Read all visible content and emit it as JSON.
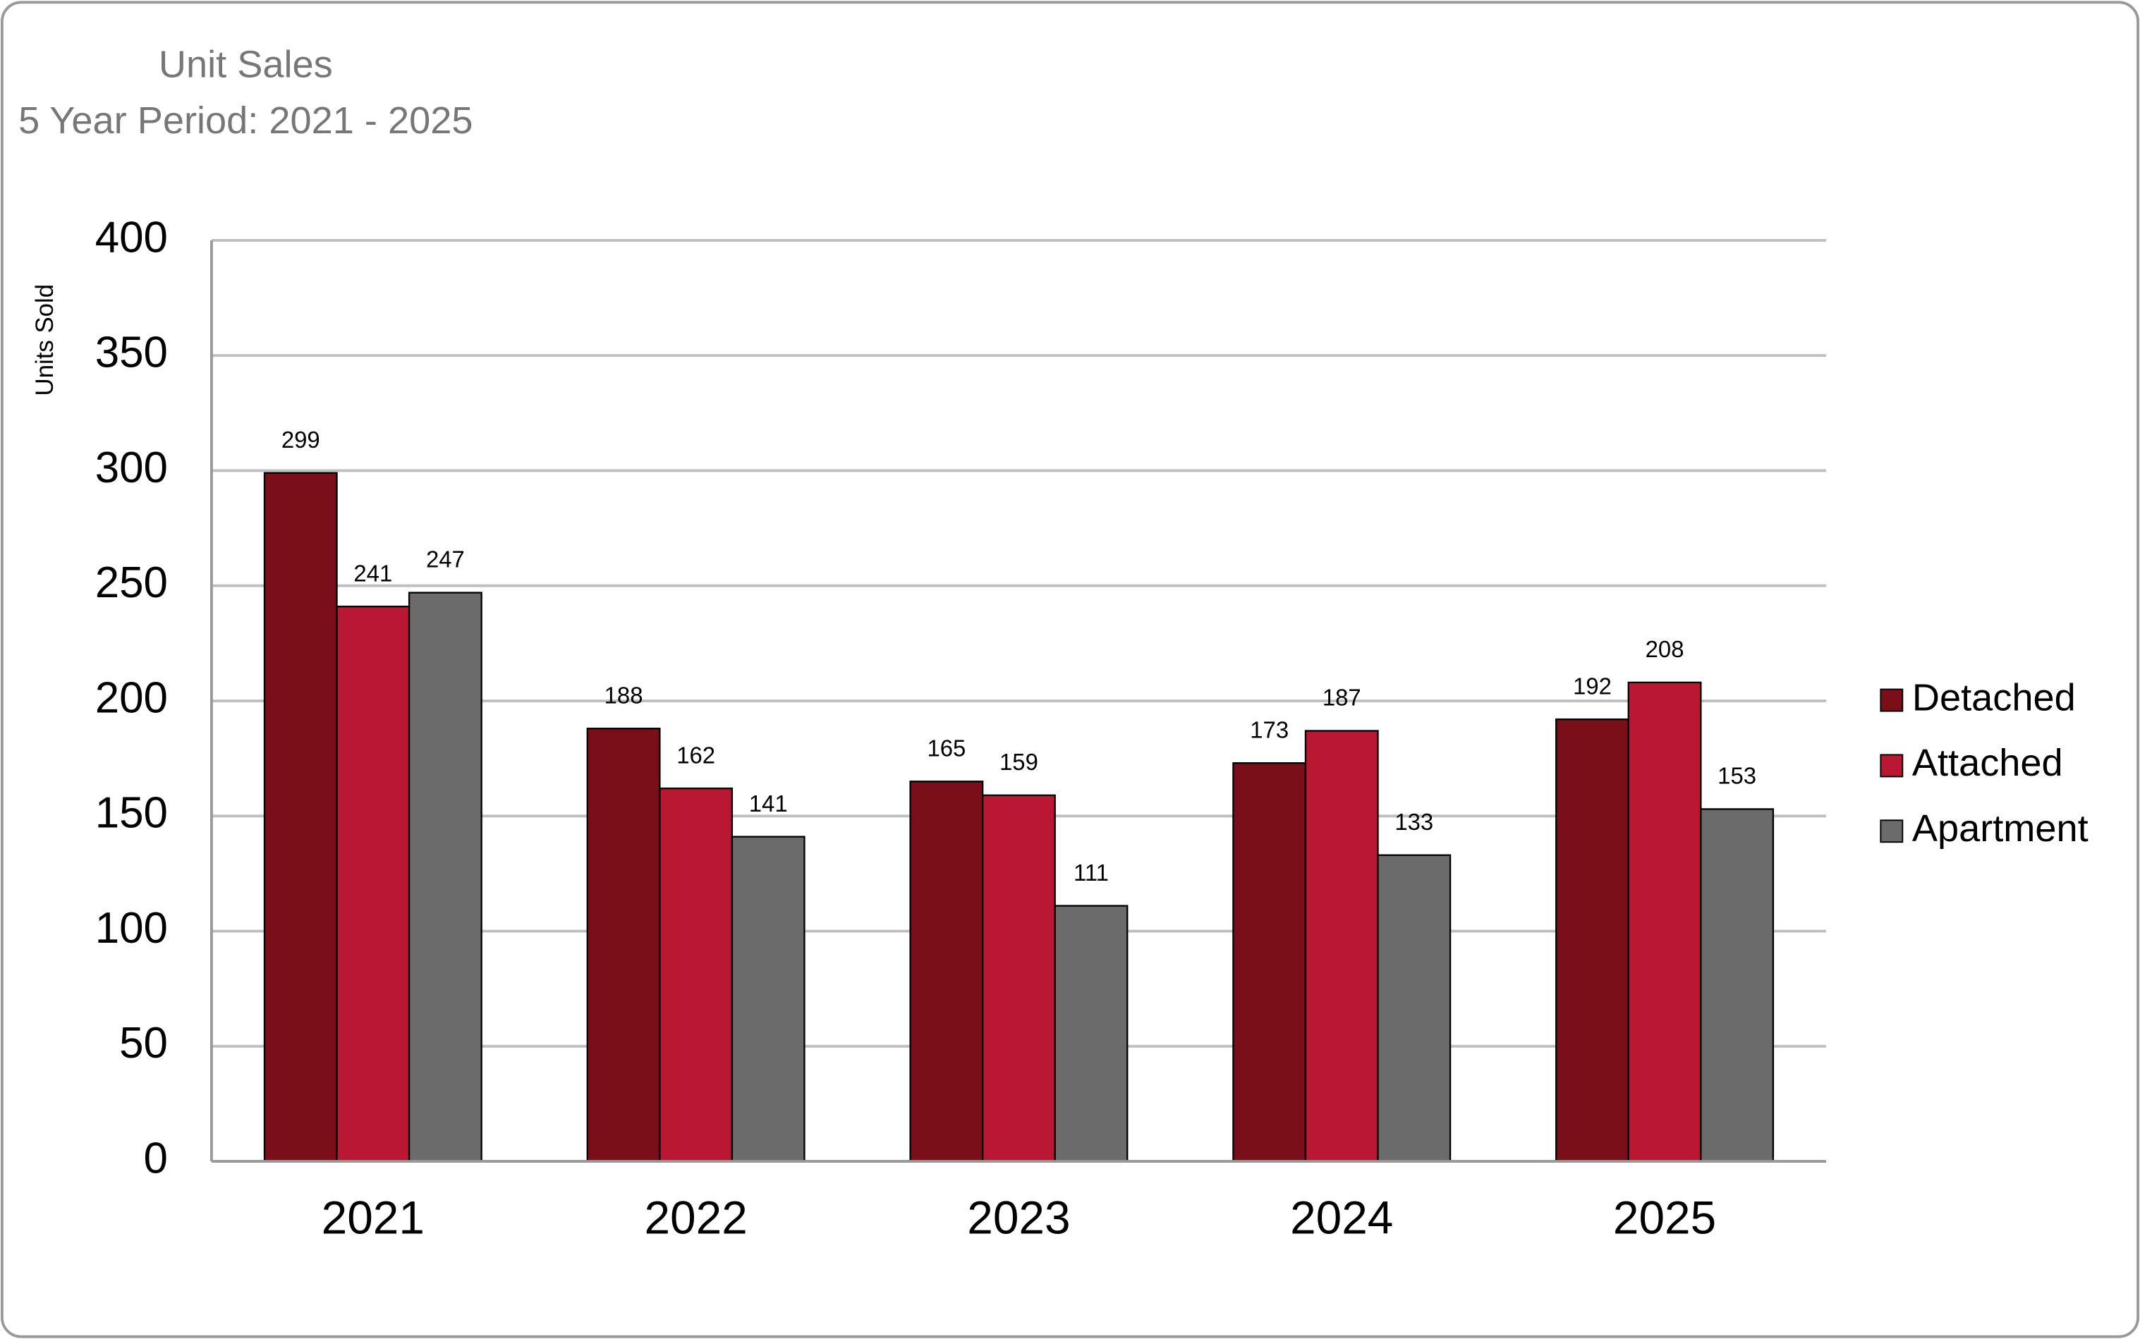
{
  "chart_data": {
    "type": "bar",
    "title": "Unit Sales",
    "subtitle": "5 Year Period: 2021 - 2025",
    "y_label": "Units Sold",
    "categories": [
      "2021",
      "2022",
      "2023",
      "2024",
      "2025"
    ],
    "series": [
      {
        "name": "Detached",
        "color": "#7a0f1a",
        "values": [
          299,
          188,
          165,
          173,
          192
        ]
      },
      {
        "name": "Attached",
        "color": "#b91732",
        "values": [
          241,
          162,
          159,
          187,
          208
        ]
      },
      {
        "name": "Apartment",
        "color": "#6b6b6b",
        "values": [
          247,
          141,
          111,
          133,
          153
        ]
      }
    ],
    "ylim": [
      0,
      400
    ],
    "yticks": [
      0,
      50,
      100,
      150,
      200,
      250,
      300,
      350,
      400
    ],
    "grid": true,
    "legend": "right"
  }
}
